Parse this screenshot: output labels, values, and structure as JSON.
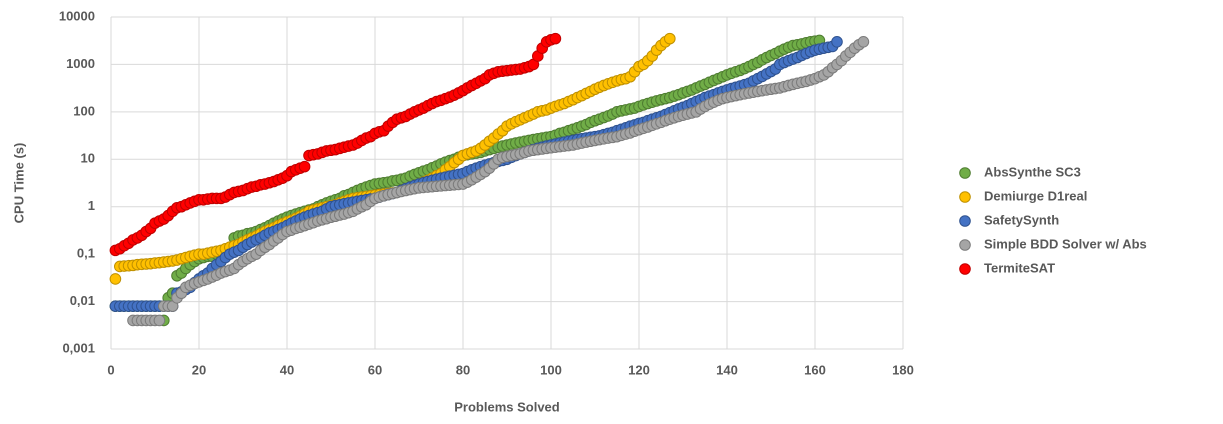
{
  "chart_data": {
    "type": "scatter",
    "x_label": "Problems Solved",
    "y_label": "CPU Time (s)",
    "xlim": [
      0,
      180
    ],
    "xticks": [
      0,
      20,
      40,
      60,
      80,
      100,
      120,
      140,
      160,
      180
    ],
    "ylim": [
      0.001,
      10000
    ],
    "yscale": "log",
    "yticks": [
      {
        "value": 0.001,
        "label": "0,001"
      },
      {
        "value": 0.01,
        "label": "0,01"
      },
      {
        "value": 0.1,
        "label": "0,1"
      },
      1,
      10,
      100,
      1000,
      10000
    ],
    "grid": true,
    "legend": "right",
    "x": [
      1,
      2,
      3,
      4,
      5,
      6,
      7,
      8,
      9,
      10,
      11,
      12,
      13,
      14,
      15,
      16,
      17,
      18,
      19,
      20,
      21,
      22,
      23,
      24,
      25,
      26,
      27,
      28,
      29,
      30,
      31,
      32,
      33,
      34,
      35,
      36,
      37,
      38,
      39,
      40,
      41,
      42,
      43,
      44,
      45,
      46,
      47,
      48,
      49,
      50,
      51,
      52,
      53,
      54,
      55,
      56,
      57,
      58,
      59,
      60,
      61,
      62,
      63,
      64,
      65,
      66,
      67,
      68,
      69,
      70,
      71,
      72,
      73,
      74,
      75,
      76,
      77,
      78,
      79,
      80,
      81,
      82,
      83,
      84,
      85,
      86,
      87,
      88,
      89,
      90,
      91,
      92,
      93,
      94,
      95,
      96,
      97,
      98,
      99,
      100,
      101,
      102,
      103,
      104,
      105,
      106,
      107,
      108,
      109,
      110,
      111,
      112,
      113,
      114,
      115,
      116,
      117,
      118,
      119,
      120,
      121,
      122,
      123,
      124,
      125,
      126,
      127,
      128,
      129,
      130,
      131,
      132,
      133,
      134,
      135,
      136,
      137,
      138,
      139,
      140,
      141,
      142,
      143,
      144,
      145,
      146,
      147,
      148,
      149,
      150,
      151,
      152,
      153,
      154,
      155,
      156,
      157,
      158,
      159,
      160,
      161,
      162,
      163,
      164,
      165,
      166,
      167,
      168,
      169,
      170,
      171
    ],
    "series": [
      {
        "name": "AbsSynthe SC3",
        "color": "#70ad47",
        "stroke": "#4f7d31",
        "values": [
          0.008,
          0.008,
          0.008,
          0.008,
          0.008,
          0.008,
          0.008,
          0.008,
          0.008,
          0.008,
          0.008,
          0.004,
          0.012,
          0.015,
          0.035,
          0.04,
          0.05,
          0.06,
          0.07,
          0.08,
          0.085,
          0.09,
          0.09,
          0.1,
          0.1,
          0.11,
          0.12,
          0.22,
          0.24,
          0.25,
          0.27,
          0.28,
          0.3,
          0.33,
          0.36,
          0.4,
          0.45,
          0.5,
          0.55,
          0.6,
          0.65,
          0.7,
          0.75,
          0.8,
          0.85,
          0.9,
          1,
          1.1,
          1.2,
          1.3,
          1.4,
          1.5,
          1.7,
          1.8,
          2,
          2.2,
          2.4,
          2.6,
          2.8,
          3,
          3.1,
          3.2,
          3.3,
          3.5,
          3.6,
          3.8,
          4,
          4.4,
          4.8,
          5.2,
          5.6,
          6,
          6.6,
          7.2,
          8,
          8.7,
          9.4,
          10,
          11,
          12,
          12.5,
          13,
          13.5,
          14,
          15,
          16,
          17,
          18,
          19,
          20,
          21,
          22,
          23,
          24,
          25,
          26,
          27,
          28,
          29,
          30,
          32,
          35,
          37,
          40,
          43,
          46,
          50,
          54,
          60,
          65,
          70,
          76,
          82,
          90,
          100,
          105,
          110,
          115,
          120,
          130,
          140,
          150,
          160,
          170,
          180,
          190,
          200,
          215,
          230,
          250,
          270,
          290,
          320,
          350,
          380,
          420,
          460,
          500,
          550,
          600,
          650,
          700,
          750,
          820,
          900,
          1000,
          1100,
          1250,
          1400,
          1550,
          1700,
          1900,
          2100,
          2300,
          2500,
          2600,
          2700,
          2850,
          3000,
          3100,
          3200,
          null,
          null,
          null,
          null,
          null,
          null,
          null,
          null,
          null,
          null
        ]
      },
      {
        "name": "Demiurge D1real",
        "color": "#ffc000",
        "stroke": "#bf9000",
        "values": [
          0.03,
          0.055,
          0.056,
          0.057,
          0.058,
          0.06,
          0.061,
          0.062,
          0.063,
          0.065,
          0.066,
          0.068,
          0.07,
          0.072,
          0.075,
          0.08,
          0.085,
          0.09,
          0.095,
          0.1,
          0.1,
          0.105,
          0.11,
          0.115,
          0.12,
          0.13,
          0.14,
          0.15,
          0.16,
          0.18,
          0.2,
          0.22,
          0.24,
          0.27,
          0.3,
          0.33,
          0.36,
          0.4,
          0.44,
          0.48,
          0.52,
          0.57,
          0.63,
          0.7,
          0.8,
          0.85,
          0.9,
          0.95,
          1,
          1.05,
          1.1,
          1.2,
          1.3,
          1.4,
          1.5,
          1.55,
          1.6,
          1.65,
          1.7,
          1.75,
          1.8,
          1.85,
          1.9,
          1.95,
          2,
          2.2,
          2.4,
          2.6,
          2.8,
          3,
          3.3,
          3.6,
          4,
          4.5,
          5,
          6,
          7,
          8.5,
          10,
          12,
          13,
          14,
          15,
          17,
          20,
          24,
          28,
          34,
          40,
          50,
          56,
          62,
          68,
          75,
          82,
          90,
          100,
          105,
          110,
          120,
          130,
          140,
          150,
          165,
          180,
          200,
          220,
          245,
          270,
          300,
          330,
          360,
          390,
          420,
          450,
          480,
          500,
          550,
          700,
          900,
          1000,
          1200,
          1500,
          2000,
          2500,
          3000,
          3500,
          null,
          null,
          null,
          null,
          null,
          null,
          null,
          null,
          null,
          null,
          null,
          null,
          null,
          null,
          null,
          null,
          null,
          null,
          null,
          null,
          null,
          null,
          null,
          null,
          null,
          null,
          null,
          null,
          null,
          null,
          null,
          null,
          null,
          null,
          null,
          null,
          null,
          null,
          null,
          null,
          null,
          null,
          null,
          null
        ]
      },
      {
        "name": "SafetySynth",
        "color": "#4472c4",
        "stroke": "#2f528f",
        "values": [
          0.008,
          0.008,
          0.008,
          0.008,
          0.008,
          0.008,
          0.008,
          0.008,
          0.008,
          0.008,
          0.008,
          0.008,
          0.008,
          0.008,
          0.015,
          0.016,
          0.018,
          0.02,
          0.025,
          0.03,
          0.035,
          0.04,
          0.05,
          0.06,
          0.07,
          0.085,
          0.1,
          0.11,
          0.12,
          0.14,
          0.16,
          0.18,
          0.2,
          0.22,
          0.25,
          0.28,
          0.3,
          0.33,
          0.36,
          0.4,
          0.45,
          0.5,
          0.55,
          0.6,
          0.65,
          0.7,
          0.75,
          0.8,
          0.9,
          1,
          1.05,
          1.1,
          1.15,
          1.2,
          1.25,
          1.3,
          1.35,
          1.4,
          1.45,
          1.5,
          1.6,
          1.7,
          1.8,
          1.9,
          2,
          2.2,
          2.4,
          2.6,
          2.8,
          3,
          3.2,
          3.4,
          3.6,
          3.8,
          4,
          4.2,
          4.4,
          4.6,
          4.8,
          5,
          5.5,
          6,
          6.5,
          7,
          7.5,
          8,
          8.5,
          9,
          9.5,
          10,
          11,
          12,
          13,
          14,
          15,
          16,
          17,
          18,
          19,
          20,
          21,
          22,
          23,
          24,
          25,
          26,
          27,
          28,
          29,
          30,
          31,
          33,
          35,
          37,
          40,
          43,
          46,
          50,
          53,
          57,
          60,
          65,
          70,
          75,
          80,
          88,
          96,
          105,
          115,
          125,
          135,
          150,
          165,
          180,
          200,
          215,
          230,
          250,
          270,
          290,
          310,
          330,
          350,
          375,
          400,
          450,
          500,
          560,
          630,
          710,
          800,
          1000,
          1100,
          1200,
          1300,
          1400,
          1550,
          1700,
          1850,
          2000,
          2100,
          2200,
          2300,
          2400,
          3000,
          null,
          null,
          null,
          null,
          null,
          null
        ]
      },
      {
        "name": "Simple BDD Solver w/ Abs",
        "color": "#a5a5a5",
        "stroke": "#7b7b7b",
        "values": [
          null,
          null,
          null,
          null,
          0.004,
          0.004,
          0.004,
          0.004,
          0.004,
          0.004,
          0.004,
          0.008,
          0.008,
          0.008,
          0.012,
          0.015,
          0.02,
          0.022,
          0.024,
          0.026,
          0.028,
          0.03,
          0.033,
          0.036,
          0.04,
          0.043,
          0.046,
          0.05,
          0.06,
          0.07,
          0.08,
          0.09,
          0.1,
          0.12,
          0.14,
          0.16,
          0.19,
          0.22,
          0.26,
          0.3,
          0.32,
          0.35,
          0.37,
          0.4,
          0.43,
          0.46,
          0.5,
          0.53,
          0.56,
          0.6,
          0.63,
          0.67,
          0.7,
          0.75,
          0.8,
          0.9,
          1,
          1.1,
          1.3,
          1.5,
          1.6,
          1.7,
          1.8,
          1.9,
          2,
          2.1,
          2.2,
          2.3,
          2.4,
          2.5,
          2.55,
          2.6,
          2.65,
          2.7,
          2.75,
          2.8,
          2.85,
          2.9,
          2.95,
          3,
          3.3,
          3.7,
          4.2,
          4.8,
          5.5,
          6.5,
          8,
          10,
          11,
          11.5,
          12,
          12.5,
          13,
          14,
          15,
          15.5,
          16,
          16.5,
          17,
          17.5,
          18,
          18.5,
          19,
          19.5,
          20,
          21,
          22,
          23,
          24,
          25,
          26,
          27,
          28,
          29,
          30,
          32,
          34,
          36,
          39,
          42,
          45,
          48,
          52,
          56,
          60,
          65,
          70,
          75,
          80,
          85,
          90,
          95,
          100,
          115,
          130,
          145,
          160,
          175,
          190,
          200,
          210,
          220,
          230,
          240,
          250,
          260,
          270,
          280,
          290,
          300,
          310,
          320,
          340,
          360,
          380,
          400,
          420,
          440,
          470,
          500,
          550,
          600,
          700,
          850,
          1000,
          1200,
          1500,
          1800,
          2200,
          2600,
          3000
        ]
      },
      {
        "name": "TermiteSAT",
        "color": "#ff0000",
        "stroke": "#c00000",
        "values": [
          0.12,
          0.13,
          0.15,
          0.17,
          0.2,
          0.22,
          0.25,
          0.3,
          0.35,
          0.45,
          0.5,
          0.55,
          0.65,
          0.8,
          0.95,
          1,
          1.1,
          1.2,
          1.3,
          1.4,
          1.4,
          1.45,
          1.5,
          1.5,
          1.5,
          1.6,
          1.8,
          2,
          2.1,
          2.2,
          2.4,
          2.6,
          2.7,
          2.9,
          3,
          3.2,
          3.4,
          3.7,
          4,
          4.5,
          5.5,
          6,
          6.5,
          7,
          12,
          12.5,
          13,
          14,
          15,
          15.5,
          16,
          17,
          18,
          19,
          20,
          22,
          25,
          28,
          30,
          35,
          38,
          40,
          50,
          60,
          70,
          75,
          80,
          90,
          100,
          110,
          120,
          135,
          150,
          165,
          175,
          190,
          205,
          225,
          250,
          280,
          320,
          360,
          400,
          450,
          500,
          600,
          650,
          700,
          720,
          740,
          760,
          780,
          800,
          850,
          900,
          1000,
          1500,
          2200,
          3000,
          3300,
          3500,
          null,
          null,
          null,
          null,
          null,
          null,
          null,
          null,
          null,
          null,
          null,
          null,
          null,
          null,
          null,
          null,
          null,
          null,
          null,
          null,
          null,
          null,
          null,
          null,
          null,
          null,
          null,
          null,
          null,
          null,
          null,
          null,
          null,
          null,
          null,
          null,
          null,
          null,
          null,
          null,
          null,
          null,
          null,
          null,
          null,
          null,
          null,
          null,
          null,
          null,
          null,
          null,
          null,
          null,
          null,
          null,
          null,
          null,
          null,
          null,
          null,
          null,
          null,
          null,
          null,
          null
        ]
      }
    ]
  }
}
